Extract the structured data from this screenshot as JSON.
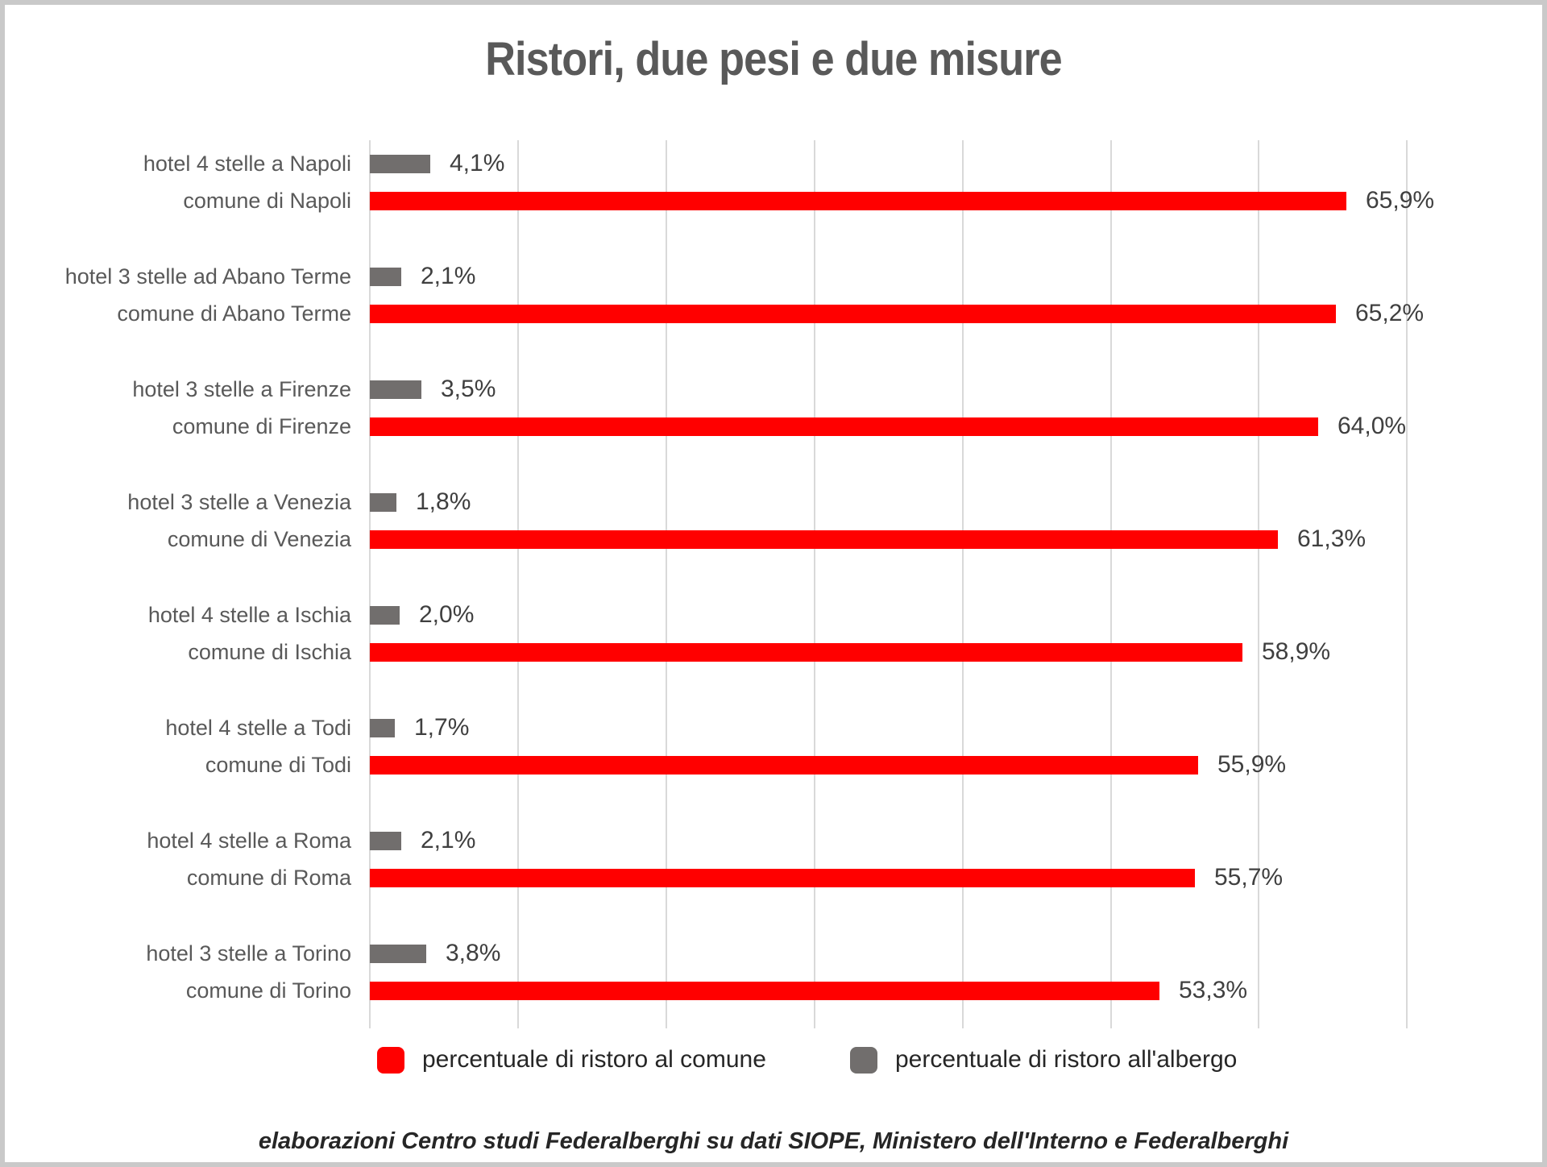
{
  "title": "Ristori, due pesi e due misure",
  "chart_data": {
    "type": "bar",
    "orientation": "horizontal",
    "title": "Ristori, due pesi e due misure",
    "value_unit": "percent",
    "x_axis": {
      "min": 0,
      "max": 70,
      "gridline_step": 10,
      "grid": true,
      "tick_labels_visible": false
    },
    "colors": {
      "comune": "#ff0000",
      "albergo": "#716e6d",
      "gridline": "#d9d9d9"
    },
    "groups": [
      {
        "hotel_label": "hotel 4 stelle a Napoli",
        "hotel_value": 4.1,
        "hotel_value_label": "4,1%",
        "comune_label": "comune di Napoli",
        "comune_value": 65.9,
        "comune_value_label": "65,9%"
      },
      {
        "hotel_label": "hotel 3 stelle ad Abano Terme",
        "hotel_value": 2.1,
        "hotel_value_label": "2,1%",
        "comune_label": "comune di Abano Terme",
        "comune_value": 65.2,
        "comune_value_label": "65,2%"
      },
      {
        "hotel_label": "hotel 3 stelle a Firenze",
        "hotel_value": 3.5,
        "hotel_value_label": "3,5%",
        "comune_label": "comune di Firenze",
        "comune_value": 64.0,
        "comune_value_label": "64,0%"
      },
      {
        "hotel_label": "hotel 3 stelle a Venezia",
        "hotel_value": 1.8,
        "hotel_value_label": "1,8%",
        "comune_label": "comune di Venezia",
        "comune_value": 61.3,
        "comune_value_label": "61,3%"
      },
      {
        "hotel_label": "hotel 4 stelle a Ischia",
        "hotel_value": 2.0,
        "hotel_value_label": "2,0%",
        "comune_label": "comune di Ischia",
        "comune_value": 58.9,
        "comune_value_label": "58,9%"
      },
      {
        "hotel_label": "hotel 4 stelle a Todi",
        "hotel_value": 1.7,
        "hotel_value_label": "1,7%",
        "comune_label": "comune di Todi",
        "comune_value": 55.9,
        "comune_value_label": "55,9%"
      },
      {
        "hotel_label": "hotel 4 stelle a Roma",
        "hotel_value": 2.1,
        "hotel_value_label": "2,1%",
        "comune_label": "comune di Roma",
        "comune_value": 55.7,
        "comune_value_label": "55,7%"
      },
      {
        "hotel_label": "hotel 3 stelle a Torino",
        "hotel_value": 3.8,
        "hotel_value_label": "3,8%",
        "comune_label": "comune di Torino",
        "comune_value": 53.3,
        "comune_value_label": "53,3%"
      }
    ],
    "legend": {
      "position": "bottom",
      "items": [
        {
          "series": "comune",
          "label": "percentuale di ristoro al comune",
          "color": "#ff0000"
        },
        {
          "series": "albergo",
          "label": "percentuale di ristoro all'albergo",
          "color": "#716e6d"
        }
      ]
    }
  },
  "footer": "elaborazioni Centro studi Federalberghi su dati SIOPE, Ministero dell'Interno e Federalberghi"
}
